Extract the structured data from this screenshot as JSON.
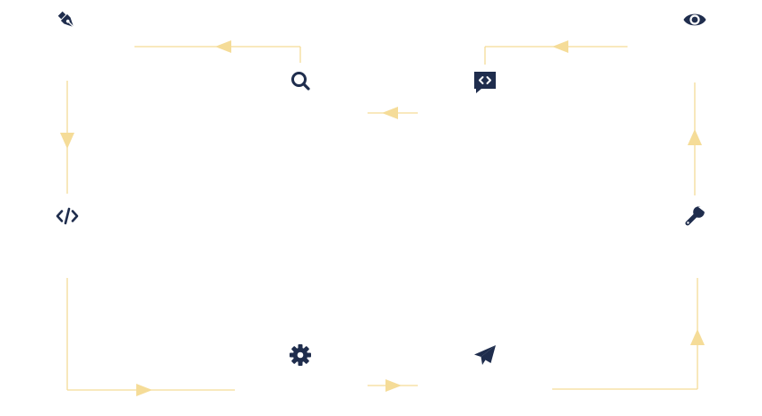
{
  "diagram": {
    "type": "process-cycle",
    "colors": {
      "icon": "#1f2d4d",
      "connector": "#f5dc98",
      "background": "#ffffff"
    },
    "nodes": [
      {
        "id": "design",
        "icon": "pen-nib-icon"
      },
      {
        "id": "search",
        "icon": "search-icon"
      },
      {
        "id": "code-review",
        "icon": "code-comment-icon"
      },
      {
        "id": "preview",
        "icon": "eye-icon"
      },
      {
        "id": "code",
        "icon": "code-icon"
      },
      {
        "id": "maintain",
        "icon": "wrench-icon"
      },
      {
        "id": "configure",
        "icon": "gear-icon"
      },
      {
        "id": "deploy",
        "icon": "paper-plane-icon"
      }
    ],
    "edges": [
      {
        "from": "search",
        "to": "design"
      },
      {
        "from": "design",
        "to": "code"
      },
      {
        "from": "code",
        "to": "configure"
      },
      {
        "from": "configure",
        "to": "deploy"
      },
      {
        "from": "deploy",
        "to": "maintain"
      },
      {
        "from": "maintain",
        "to": "preview"
      },
      {
        "from": "preview",
        "to": "code-review"
      },
      {
        "from": "code-review",
        "to": "search"
      }
    ]
  }
}
